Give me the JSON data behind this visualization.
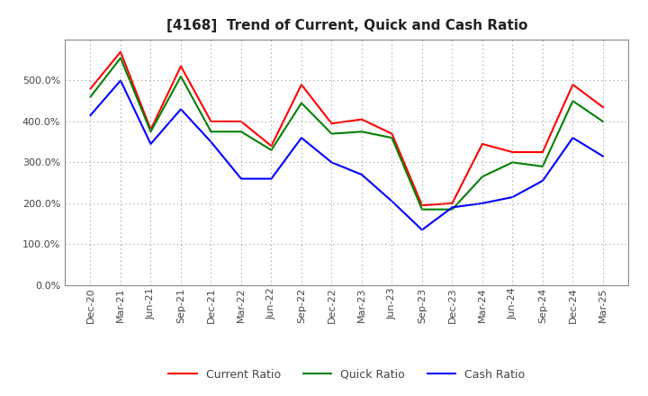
{
  "title": "[4168]  Trend of Current, Quick and Cash Ratio",
  "x_labels": [
    "Dec-20",
    "Mar-21",
    "Jun-21",
    "Sep-21",
    "Dec-21",
    "Mar-22",
    "Jun-22",
    "Sep-22",
    "Dec-22",
    "Mar-23",
    "Jun-23",
    "Sep-23",
    "Dec-23",
    "Mar-24",
    "Jun-24",
    "Sep-24",
    "Dec-24",
    "Mar-25"
  ],
  "current_ratio": [
    480,
    570,
    380,
    535,
    400,
    400,
    340,
    490,
    395,
    405,
    370,
    195,
    200,
    345,
    325,
    325,
    490,
    435
  ],
  "quick_ratio": [
    460,
    555,
    375,
    510,
    375,
    375,
    330,
    445,
    370,
    375,
    360,
    185,
    185,
    265,
    300,
    290,
    450,
    400
  ],
  "cash_ratio": [
    415,
    500,
    345,
    430,
    350,
    260,
    260,
    360,
    300,
    270,
    205,
    135,
    190,
    200,
    215,
    255,
    360,
    315
  ],
  "ylim": [
    0,
    600
  ],
  "yticks": [
    0,
    100,
    200,
    300,
    400,
    500
  ],
  "current_color": "#ff0000",
  "quick_color": "#008000",
  "cash_color": "#0000ff",
  "grid_color": "#999999",
  "background_color": "#ffffff",
  "title_fontsize": 11,
  "legend_fontsize": 9,
  "tick_fontsize": 8,
  "legend_labels": [
    "Current Ratio",
    "Quick Ratio",
    "Cash Ratio"
  ]
}
